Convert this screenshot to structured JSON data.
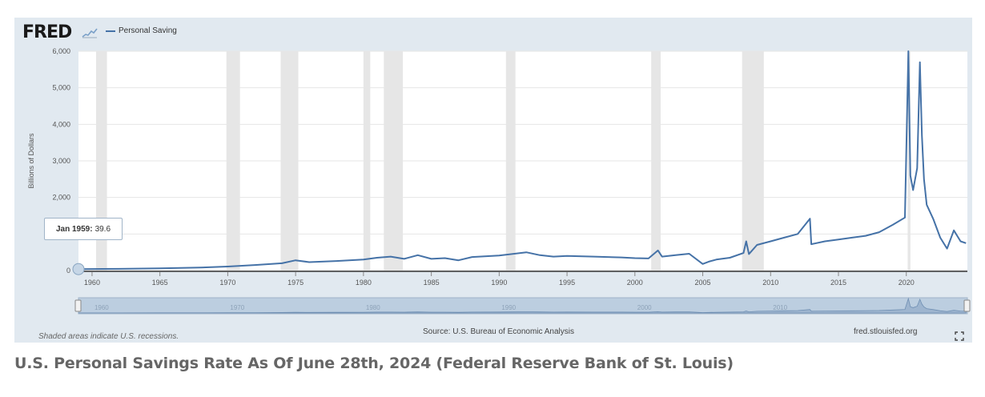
{
  "header": {
    "logo_text": "FRED",
    "legend_label": "Personal Saving",
    "series_color": "#4572a7"
  },
  "tooltip": {
    "date": "Jan 1959:",
    "value": "39.6"
  },
  "footer": {
    "recession_note": "Shaded areas indicate U.S. recessions.",
    "source": "Source: U.S. Bureau of Economic Analysis",
    "site": "fred.stlouisfed.org"
  },
  "caption": "U.S. Personal Savings Rate As Of June 28th, 2024 (Federal Reserve Bank of St. Louis)",
  "colors": {
    "panel_bg": "#e1e9f0",
    "plot_bg": "#ffffff",
    "recession": "#e6e6e6",
    "line": "#4572a7",
    "navigator": "#bccee0"
  },
  "chart_data": {
    "type": "line",
    "title": "",
    "ylabel": "Billions of Dollars",
    "xlabel": "",
    "ylim": [
      0,
      6000
    ],
    "xlim": [
      1959,
      2024.5
    ],
    "y_ticks": [
      0,
      1000,
      2000,
      3000,
      4000,
      5000,
      6000
    ],
    "y_tick_labels": [
      "0",
      "1,000",
      "2,000",
      "3,000",
      "4,000",
      "5,000",
      "6,000"
    ],
    "x_ticks": [
      1960,
      1965,
      1970,
      1975,
      1980,
      1985,
      1990,
      1995,
      2000,
      2005,
      2010,
      2015,
      2020
    ],
    "navigator_ticks": [
      1960,
      1970,
      1980,
      1990,
      2000,
      2010
    ],
    "grid": true,
    "recessions": [
      [
        1960.3,
        1961.1
      ],
      [
        1969.9,
        1970.9
      ],
      [
        1973.9,
        1975.2
      ],
      [
        1980.0,
        1980.5
      ],
      [
        1981.5,
        1982.9
      ],
      [
        1990.5,
        1991.2
      ],
      [
        2001.2,
        2001.9
      ],
      [
        2007.9,
        2009.5
      ],
      [
        2020.1,
        2020.3
      ]
    ],
    "series": [
      {
        "name": "Personal Saving",
        "x": [
          1959.0,
          1962,
          1965,
          1968,
          1970,
          1972,
          1974,
          1975,
          1976,
          1978,
          1980,
          1981,
          1982,
          1983,
          1984,
          1985,
          1986,
          1987,
          1988,
          1990,
          1992,
          1993,
          1994,
          1995,
          1997,
          1999,
          2000,
          2001,
          2001.7,
          2002,
          2003,
          2004,
          2005,
          2005.5,
          2006,
          2007,
          2008,
          2008.2,
          2008.4,
          2009,
          2010,
          2011,
          2012,
          2012.9,
          2013.0,
          2014,
          2015,
          2016,
          2017,
          2018,
          2019,
          2019.9,
          2020.15,
          2020.3,
          2020.5,
          2020.8,
          2021.0,
          2021.15,
          2021.3,
          2021.5,
          2022.0,
          2022.5,
          2023.0,
          2023.5,
          2024.0,
          2024.4
        ],
        "values": [
          39.6,
          45,
          60,
          80,
          110,
          150,
          200,
          280,
          230,
          260,
          300,
          350,
          380,
          320,
          420,
          320,
          340,
          280,
          370,
          410,
          500,
          420,
          380,
          400,
          380,
          360,
          340,
          330,
          550,
          380,
          420,
          460,
          180,
          250,
          300,
          350,
          480,
          800,
          450,
          700,
          800,
          900,
          1000,
          1420,
          720,
          800,
          850,
          900,
          950,
          1050,
          1250,
          1450,
          6000,
          2600,
          2200,
          2800,
          5700,
          3700,
          2500,
          1800,
          1400,
          900,
          600,
          1100,
          800,
          750
        ]
      }
    ]
  }
}
